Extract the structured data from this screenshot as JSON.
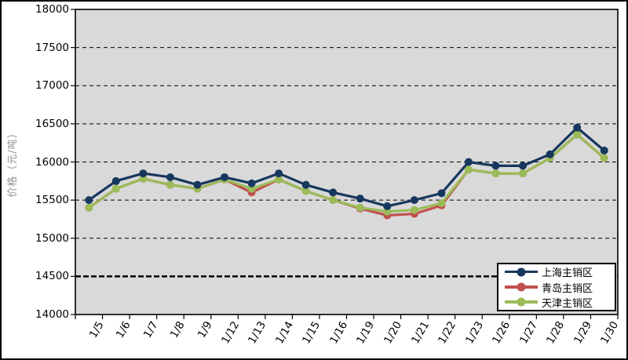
{
  "chart_data": {
    "type": "line",
    "title": "",
    "xlabel": "",
    "ylabel": "价格（元/吨）",
    "ylim": [
      14000,
      18000
    ],
    "yticks": [
      18000,
      17500,
      17000,
      16500,
      16000,
      15500,
      15000,
      14500,
      14000
    ],
    "categories": [
      "1/5",
      "1/6",
      "1/7",
      "1/8",
      "1/9",
      "1/12",
      "1/13",
      "1/14",
      "1/15",
      "1/16",
      "1/19",
      "1/20",
      "1/21",
      "1/22",
      "1/23",
      "1/26",
      "1/27",
      "1/28",
      "1/29",
      "1/30"
    ],
    "series": [
      {
        "name": "上海主销区",
        "color": "#17375E",
        "values": [
          15500,
          15750,
          15850,
          15800,
          15700,
          15800,
          15720,
          15850,
          15700,
          15600,
          15520,
          15420,
          15500,
          15590,
          16000,
          15950,
          15950,
          16100,
          16450,
          16150
        ]
      },
      {
        "name": "青岛主销区",
        "color": "#C0504D",
        "values": [
          15400,
          15650,
          15780,
          15700,
          15650,
          15770,
          15600,
          15770,
          15620,
          15500,
          15390,
          15300,
          15320,
          15430,
          15900,
          15850,
          15850,
          16050,
          16360,
          16050
        ]
      },
      {
        "name": "天津主销区",
        "color": "#9BBB59",
        "values": [
          15400,
          15650,
          15780,
          15700,
          15650,
          15770,
          15650,
          15770,
          15620,
          15500,
          15400,
          15350,
          15370,
          15460,
          15900,
          15850,
          15850,
          16050,
          16360,
          16050
        ]
      }
    ],
    "grid": {
      "horizontal_dashed": true,
      "bold_line_at": 14500
    },
    "legend": {
      "position": "bottom-right-inside"
    },
    "plot_background": "#D9D9D9",
    "frame_border_color": "#000000"
  }
}
